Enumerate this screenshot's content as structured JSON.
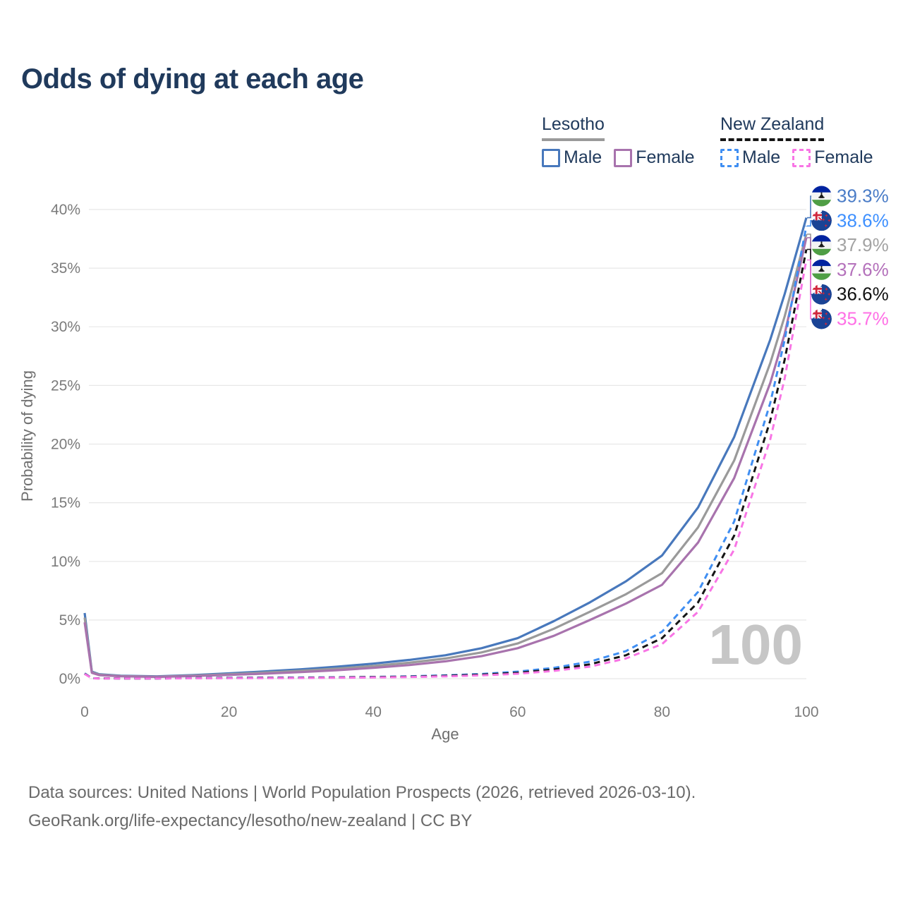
{
  "header": {
    "title": "Odds of dying at each age"
  },
  "legend": {
    "groups": [
      {
        "label": "Lesotho",
        "underline_color": "#9a9a9a",
        "underline_style": "solid",
        "items": [
          {
            "label": "Male",
            "color": "#4878bc",
            "style": "solid"
          },
          {
            "label": "Female",
            "color": "#a873ad",
            "style": "solid"
          }
        ]
      },
      {
        "label": "New Zealand",
        "underline_color": "#151515",
        "underline_style": "dashed",
        "items": [
          {
            "label": "Male",
            "color": "#3f8ef2",
            "style": "dashed"
          },
          {
            "label": "Female",
            "color": "#f875e5",
            "style": "dashed"
          }
        ]
      }
    ]
  },
  "chart_data": {
    "type": "line",
    "title": "Odds of dying at each age",
    "xlabel": "Age",
    "ylabel": "Probability of dying",
    "xlim": [
      0,
      100
    ],
    "ylim": [
      0,
      40
    ],
    "grid": true,
    "legend_position": "top-right",
    "xticks": [
      "0",
      "20",
      "40",
      "60",
      "80",
      "100"
    ],
    "yticks": [
      "40%",
      "35%",
      "30%",
      "25%",
      "20%",
      "15%",
      "10%",
      "5%",
      "0%"
    ],
    "hover_age": "100",
    "ages": [
      0,
      1,
      2,
      5,
      10,
      15,
      20,
      25,
      30,
      35,
      40,
      45,
      50,
      55,
      60,
      65,
      70,
      75,
      80,
      85,
      90,
      95,
      97,
      100
    ],
    "series": [
      {
        "name": "Lesotho Male",
        "country": "Lesotho",
        "sex": "Male",
        "flag": "lesotho",
        "color": "#4878bc",
        "label_color": "#4a7cc7",
        "dashed": false,
        "end_label": "39.3%",
        "values": [
          5.6,
          0.6,
          0.38,
          0.25,
          0.2,
          0.3,
          0.45,
          0.62,
          0.8,
          1.02,
          1.28,
          1.6,
          2.0,
          2.6,
          3.45,
          4.9,
          6.5,
          8.3,
          10.5,
          14.6,
          20.6,
          28.9,
          32.8,
          39.3
        ]
      },
      {
        "name": "New Zealand Male",
        "country": "New Zealand",
        "sex": "Male",
        "flag": "new-zealand",
        "color": "#3f8ef2",
        "label_color": "#3e90ff",
        "dashed": true,
        "end_label": "38.6%",
        "values": [
          0.45,
          0.04,
          0.03,
          0.02,
          0.02,
          0.05,
          0.08,
          0.09,
          0.1,
          0.12,
          0.15,
          0.2,
          0.28,
          0.4,
          0.6,
          0.92,
          1.45,
          2.35,
          4.0,
          7.4,
          13.4,
          23.5,
          28.9,
          38.6
        ]
      },
      {
        "name": "Lesotho Both sexes",
        "country": "Lesotho",
        "sex": "Both",
        "flag": "lesotho",
        "color": "#9a9a9a",
        "label_color": "#a3a3a3",
        "dashed": false,
        "end_label": "37.9%",
        "values": [
          5.2,
          0.55,
          0.34,
          0.22,
          0.17,
          0.26,
          0.38,
          0.52,
          0.67,
          0.86,
          1.08,
          1.36,
          1.72,
          2.24,
          3.0,
          4.25,
          5.7,
          7.2,
          9.0,
          12.9,
          18.6,
          26.9,
          30.9,
          37.9
        ]
      },
      {
        "name": "Lesotho Female",
        "country": "Lesotho",
        "sex": "Female",
        "flag": "lesotho",
        "color": "#a873ad",
        "label_color": "#b471bb",
        "dashed": false,
        "end_label": "37.6%",
        "values": [
          4.8,
          0.5,
          0.3,
          0.2,
          0.15,
          0.22,
          0.32,
          0.43,
          0.56,
          0.72,
          0.92,
          1.16,
          1.48,
          1.92,
          2.6,
          3.65,
          5.0,
          6.4,
          8.0,
          11.6,
          17.1,
          25.2,
          29.4,
          37.6
        ]
      },
      {
        "name": "New Zealand Both sexes",
        "country": "New Zealand",
        "sex": "Both",
        "flag": "new-zealand",
        "color": "#151515",
        "label_color": "#111111",
        "dashed": true,
        "end_label": "36.6%",
        "values": [
          0.42,
          0.035,
          0.025,
          0.018,
          0.016,
          0.04,
          0.06,
          0.07,
          0.08,
          0.1,
          0.13,
          0.17,
          0.24,
          0.34,
          0.5,
          0.78,
          1.22,
          2.0,
          3.45,
          6.5,
          12.2,
          22.0,
          27.2,
          36.6
        ]
      },
      {
        "name": "New Zealand Female",
        "country": "New Zealand",
        "sex": "Female",
        "flag": "new-zealand",
        "color": "#f875e5",
        "label_color": "#ff70e6",
        "dashed": true,
        "end_label": "35.7%",
        "values": [
          0.4,
          0.03,
          0.02,
          0.015,
          0.014,
          0.03,
          0.04,
          0.05,
          0.06,
          0.08,
          0.1,
          0.14,
          0.2,
          0.28,
          0.42,
          0.66,
          1.02,
          1.72,
          2.95,
          5.7,
          11.0,
          20.4,
          25.6,
          35.7
        ]
      }
    ]
  },
  "footer": {
    "line1": "Data sources: United Nations | World Population Prospects (2026, retrieved 2026-03-10).",
    "line2": "GeoRank.org/life-expectancy/lesotho/new-zealand | CC BY"
  }
}
